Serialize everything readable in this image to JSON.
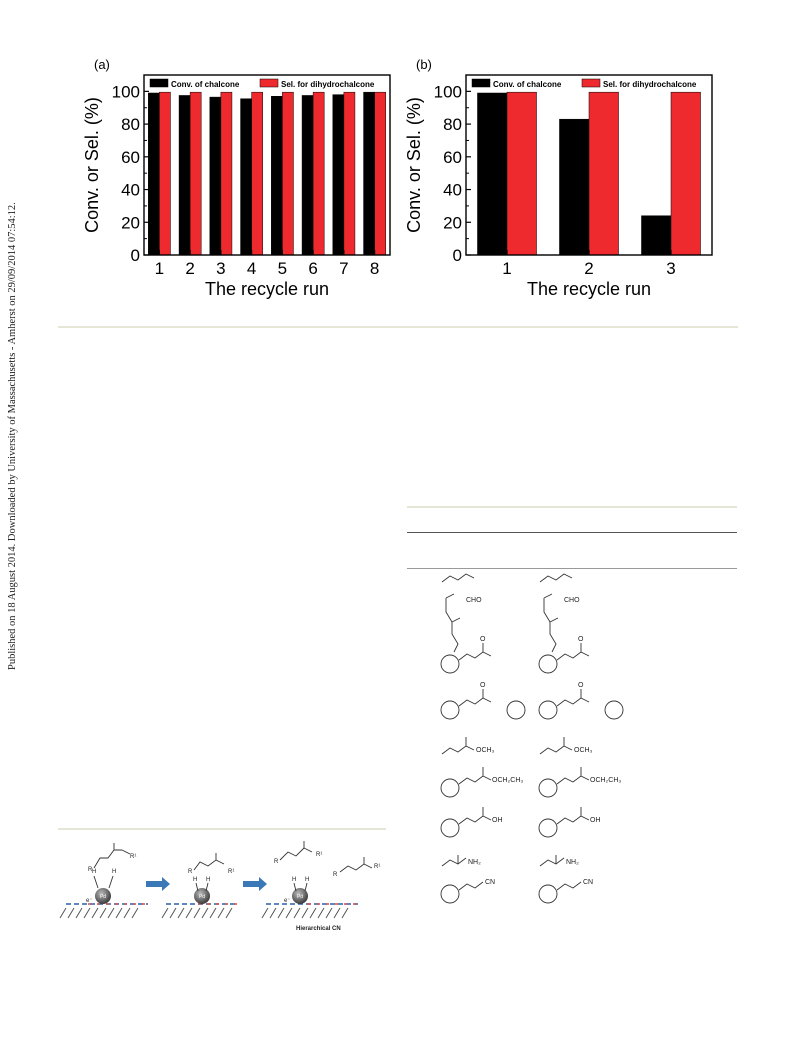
{
  "side_note": "Published on 18 August 2014. Downloaded by University of Massachusetts - Amherst on 29/09/2014 07:54:12.",
  "chart_data": [
    {
      "type": "bar",
      "panel_label": "(a)",
      "title": "",
      "xlabel": "The recycle run",
      "ylabel": "Conv. or Sel. (%)",
      "categories": [
        "1",
        "2",
        "3",
        "4",
        "5",
        "6",
        "7",
        "8"
      ],
      "ylim": [
        0,
        110
      ],
      "yticks": [
        0,
        20,
        40,
        60,
        80,
        100
      ],
      "legend_position": "top",
      "grid": false,
      "series": [
        {
          "name": "Conv. of chalcone",
          "color": "#000000",
          "values": [
            99,
            97.5,
            96.5,
            95.5,
            97,
            97.5,
            98,
            99.5
          ]
        },
        {
          "name": "Sel. for dihydrochalcone",
          "color": "#ee2a2e",
          "values": [
            99.5,
            99.5,
            99.5,
            99.5,
            99.5,
            99.5,
            99.5,
            99.5
          ]
        }
      ]
    },
    {
      "type": "bar",
      "panel_label": "(b)",
      "title": "",
      "xlabel": "The recycle run",
      "ylabel": "Conv. or Sel. (%)",
      "categories": [
        "1",
        "2",
        "3"
      ],
      "ylim": [
        0,
        110
      ],
      "yticks": [
        0,
        20,
        40,
        60,
        80,
        100
      ],
      "legend_position": "top",
      "grid": false,
      "series": [
        {
          "name": "Conv. of chalcone",
          "color": "#000000",
          "values": [
            99,
            83,
            24
          ]
        },
        {
          "name": "Sel. for dihydrochalcone",
          "color": "#ee2a2e",
          "values": [
            99.5,
            99.5,
            99.5
          ]
        }
      ]
    }
  ],
  "scheme": {
    "pd_label": "Pd",
    "electron_label": "e⁻",
    "h_label": "H",
    "r_label": "R",
    "r1_label": "R¹",
    "support_label": "Hierarchical CN"
  },
  "structures": {
    "labels": [
      "CHO",
      "CHO",
      "O",
      "O",
      "O",
      "O",
      "OCH₃",
      "OCH₃",
      "OCH₂CH₃",
      "OCH₂CH₃",
      "OH",
      "OH",
      "NH₂",
      "NH₂",
      "CN",
      "CN"
    ]
  }
}
